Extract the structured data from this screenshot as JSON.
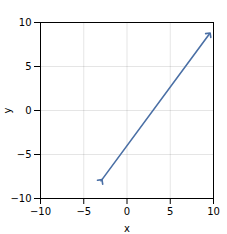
{
  "chart_data": {
    "type": "line",
    "x": [
      -3.0,
      9.5
    ],
    "values": [
      -8.0,
      8.666666666666666
    ],
    "color": "#4a6fa5",
    "marker": "arrow",
    "xlabel": "x",
    "ylabel": "y",
    "xlim": [
      -10,
      10
    ],
    "ylim": [
      -10,
      10
    ],
    "xticks": [
      -10,
      -5,
      0,
      5,
      10
    ],
    "yticks": [
      -10,
      -5,
      0,
      5,
      10
    ],
    "grid": true
  }
}
